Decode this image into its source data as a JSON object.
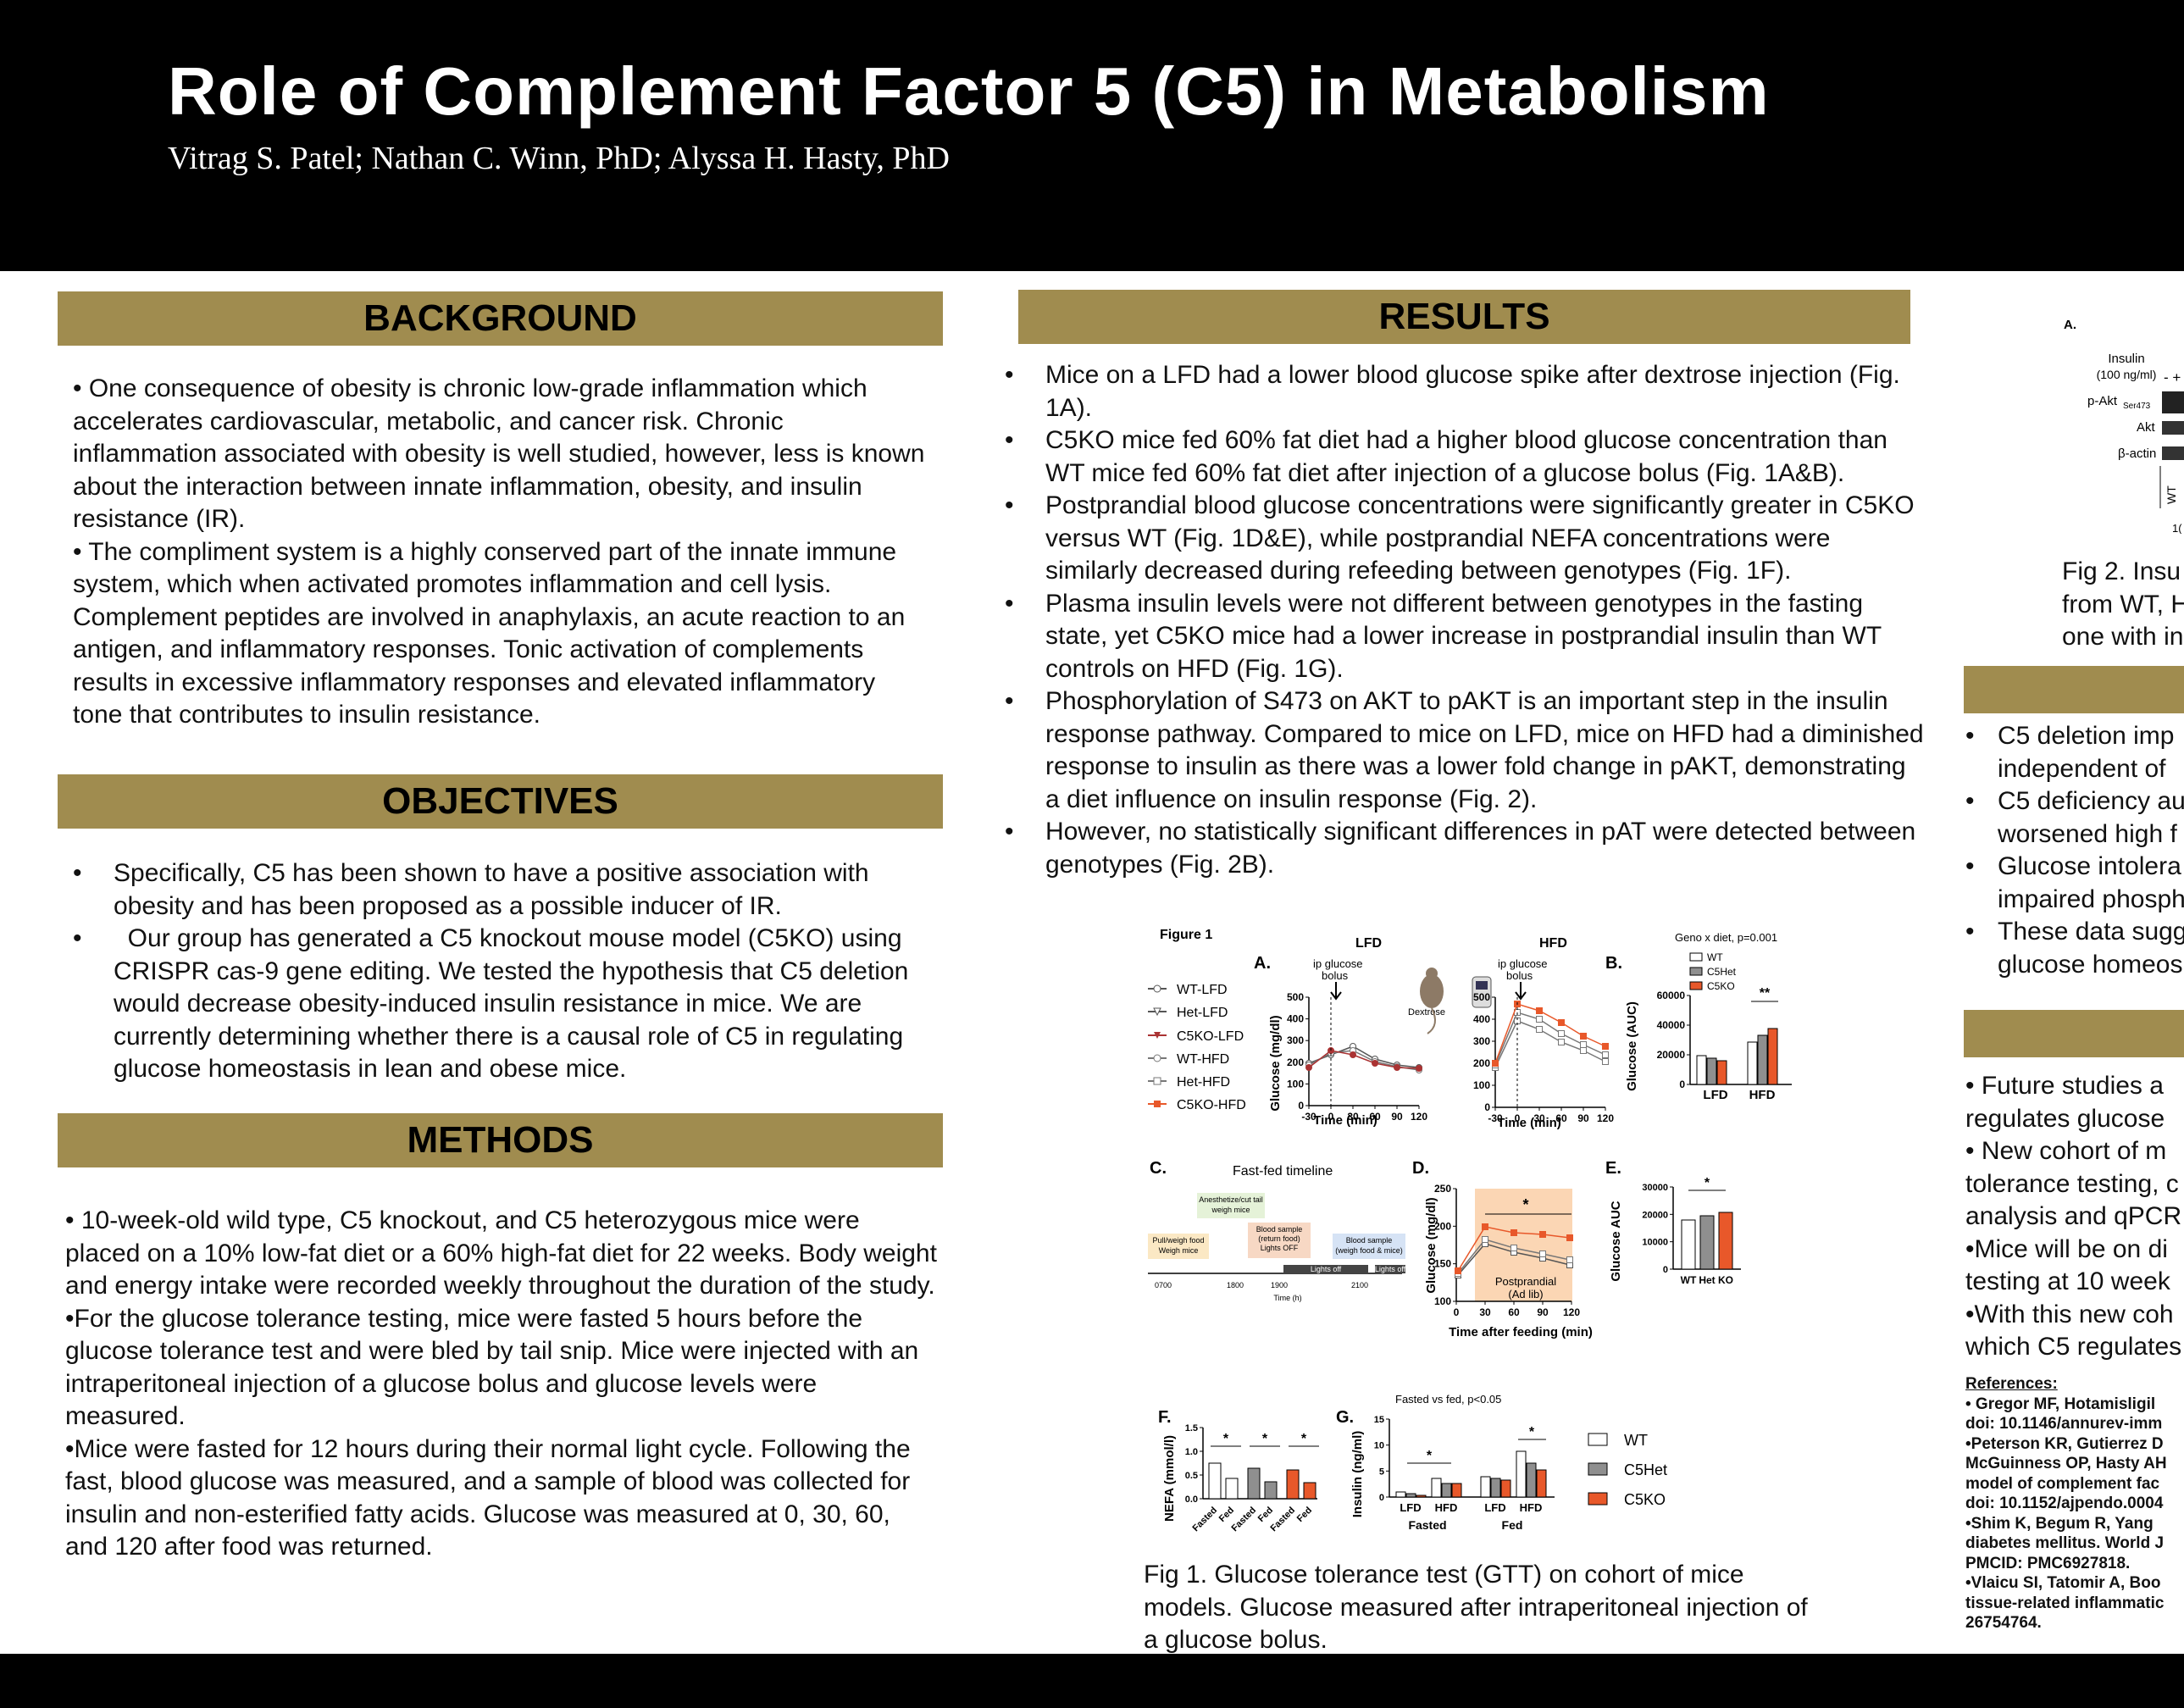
{
  "header": {
    "title": "Role of Complement Factor 5 (C5) in Metabolism",
    "authors": "Vitrag S. Patel; Nathan C. Winn, PhD; Alyssa H. Hasty, PhD"
  },
  "background": {
    "heading": "BACKGROUND",
    "paragraphs": [
      "•   One consequence of obesity is chronic low-grade inflammation which accelerates cardiovascular, metabolic, and cancer risk. Chronic inflammation associated with obesity is well studied, however, less is known about the interaction between innate inflammation, obesity, and insulin resistance (IR).",
      "•   The compliment system is a highly conserved part of the innate immune system, which when activated promotes inflammation and cell lysis. Complement peptides are involved in anaphylaxis, an acute reaction to an antigen, and inflammatory responses. Tonic activation of complements results in excessive inflammatory responses and elevated inflammatory tone that contributes to insulin resistance."
    ]
  },
  "objectives": {
    "heading": "OBJECTIVES",
    "items": [
      "Specifically, C5 has been shown to have a positive association with obesity and has been proposed as a possible inducer of IR.",
      "  Our group has generated a C5 knockout mouse model (C5KO) using CRISPR cas-9 gene editing. We tested the hypothesis that C5 deletion would decrease obesity-induced insulin resistance in mice. We are currently determining whether there is a causal role of C5 in regulating glucose homeostasis in lean and obese mice."
    ]
  },
  "methods": {
    "heading": "METHODS",
    "paragraphs": [
      "• 10-week-old wild type, C5 knockout, and C5 heterozygous mice were placed on a 10% low-fat diet or a 60% high-fat diet for 22 weeks. Body weight and energy intake were recorded weekly throughout the duration of the study.",
      "•For the glucose tolerance testing, mice were fasted 5 hours before the glucose tolerance test and were bled by tail snip. Mice were injected with an intraperitoneal injection of a glucose bolus and glucose levels were measured.",
      "•Mice were fasted for 12 hours during their normal light cycle. Following the fast, blood glucose was measured, and a sample of blood was collected for insulin and non-esterified fatty acids. Glucose was measured at 0, 30, 60, and 120 after food was returned."
    ]
  },
  "results": {
    "heading": "RESULTS",
    "items": [
      "Mice on a LFD had a lower blood glucose spike after dextrose injection (Fig. 1A).",
      "C5KO mice fed 60% fat diet had a higher blood glucose concentration than WT mice fed 60% fat diet after injection of a glucose bolus (Fig. 1A&B).",
      "Postprandial blood glucose concentrations were significantly greater in C5KO versus WT (Fig. 1D&E), while postprandial NEFA concentrations were similarly decreased during refeeding between genotypes (Fig. 1F).",
      "Plasma insulin levels were not different between genotypes in the fasting state, yet C5KO mice had a lower increase in postprandial insulin than WT controls on HFD (Fig. 1G).",
      "Phosphorylation of S473 on AKT to pAKT is an important step in the insulin response pathway. Compared to mice on LFD, mice on HFD had a diminished response to insulin as there was a lower fold change in pAKT, demonstrating a diet influence on insulin response (Fig. 2).",
      "However, no statistically significant differences in pAT were detected between genotypes (Fig. 2B)."
    ]
  },
  "figure1": {
    "label": "Figure 1",
    "panel_a": "A.",
    "panel_b": "B.",
    "panel_c": "C.",
    "panel_d": "D.",
    "panel_e": "E.",
    "panel_f": "F.",
    "panel_g": "G.",
    "lfd": "LFD",
    "hfd": "HFD",
    "ip_glucose": "ip glucose",
    "bolus": "bolus",
    "dextrose": "Dextrose",
    "legend_a": [
      "WT-LFD",
      "Het-LFD",
      "C5KO-LFD",
      "WT-HFD",
      "Het-HFD",
      "C5KO-HFD"
    ],
    "glucose_mgdl": "Glucose (mg/dl)",
    "time_min": "Time (min)",
    "x_ticks_a": [
      "-30",
      "0",
      "30",
      "60",
      "90",
      "120"
    ],
    "y_ticks_a": [
      "0",
      "100",
      "200",
      "300",
      "400",
      "500"
    ],
    "geno_diet": "Geno x diet, p=0.001",
    "legend_b": [
      "WT",
      "C5Het",
      "C5KO"
    ],
    "glucose_auc": "Glucose (AUC)",
    "y_ticks_b": [
      "0",
      "20000",
      "40000",
      "60000"
    ],
    "sig_b": "**",
    "fastfed": "Fast-fed timeline",
    "anesth1": "Anesthetize/cut tail",
    "anesth2": "weigh mice",
    "pull1": "Pull/weigh food",
    "pull2": "Weigh mice",
    "bs1": "Blood sample",
    "bs2": "(return food)",
    "bs3": "Lights OFF",
    "bs4": "Blood sample",
    "bs5": "(weigh food & mice)",
    "lights_off": "Lights off",
    "lights_off2": "Lights off",
    "times": [
      "0700",
      "1800",
      "1900",
      "2100"
    ],
    "time_h": "Time (h)",
    "postprandial": "Postprandial",
    "adlib": "(Ad lib)",
    "time_after": "Time after feeding (min)",
    "x_ticks_d": [
      "0",
      "30",
      "60",
      "90",
      "120"
    ],
    "y_ticks_d": [
      "100",
      "150",
      "200",
      "250"
    ],
    "glucose_auc_e": "Glucose AUC",
    "y_ticks_e": [
      "0",
      "10000",
      "20000",
      "30000"
    ],
    "x_ticks_e": [
      "WT",
      "Het",
      "KO"
    ],
    "nefa": "NEFA (mmol/l)",
    "y_ticks_f": [
      "0.0",
      "0.5",
      "1.0",
      "1.5"
    ],
    "x_ticks_f": [
      "Fasted",
      "Fed",
      "Fasted",
      "Fed",
      "Fasted",
      "Fed"
    ],
    "fasted_vs_fed": "Fasted vs fed, p<0.05",
    "insulin": "Insulin (ng/ml)",
    "y_ticks_g": [
      "0",
      "5",
      "10",
      "15"
    ],
    "fasted": "Fasted",
    "fed": "Fed",
    "legend_g": [
      "WT",
      "C5Het",
      "C5KO"
    ],
    "star": "*",
    "caption": "Fig 1. Glucose tolerance test (GTT) on cohort of mice models. Glucose measured after intraperitoneal injection of a glucose bolus."
  },
  "figure2": {
    "panel": "A.",
    "insulin": "Insulin",
    "conc": "(100 ng/ml)",
    "pm": "- +",
    "pakt": "p-Akt",
    "ser": "Ser473",
    "akt": "Akt",
    "actin": "β-actin",
    "wt": "WT",
    "partial": "1(",
    "caption": [
      "Fig 2. Insu",
      "from WT, H",
      "one with in"
    ]
  },
  "conclusions": {
    "items": [
      "C5 deletion imp",
      "independent of",
      "C5 deficiency au",
      "worsened high f",
      "Glucose intolera",
      "impaired phosph",
      "These data sugg",
      "glucose homeos"
    ]
  },
  "future": {
    "lines": [
      "•  Future studies a",
      "regulates glucose",
      "•  New cohort of m",
      "tolerance testing, c",
      "analysis and qPCR",
      "•Mice will be on di",
      "testing at 10 week",
      "•With this new coh",
      "which C5 regulates"
    ]
  },
  "references": {
    "heading": "References:",
    "lines": [
      "• Gregor MF, Hotamisligil",
      "doi: 10.1146/annurev-imm",
      "•Peterson KR, Gutierrez D",
      "McGuinness OP, Hasty AH",
      "model of complement fac",
      "doi: 10.1152/ajpendo.0004",
      "•Shim K, Begum R, Yang",
      "diabetes mellitus. World J",
      "PMCID: PMC6927818.",
      "•Vlaicu SI, Tatomir A, Boo",
      "tissue-related inflammatic",
      "26754764."
    ]
  },
  "colors": {
    "gold": "#a08c4f",
    "black": "#000000",
    "ko_orange": "#e8582a",
    "het_gray": "#8f8f8f"
  }
}
